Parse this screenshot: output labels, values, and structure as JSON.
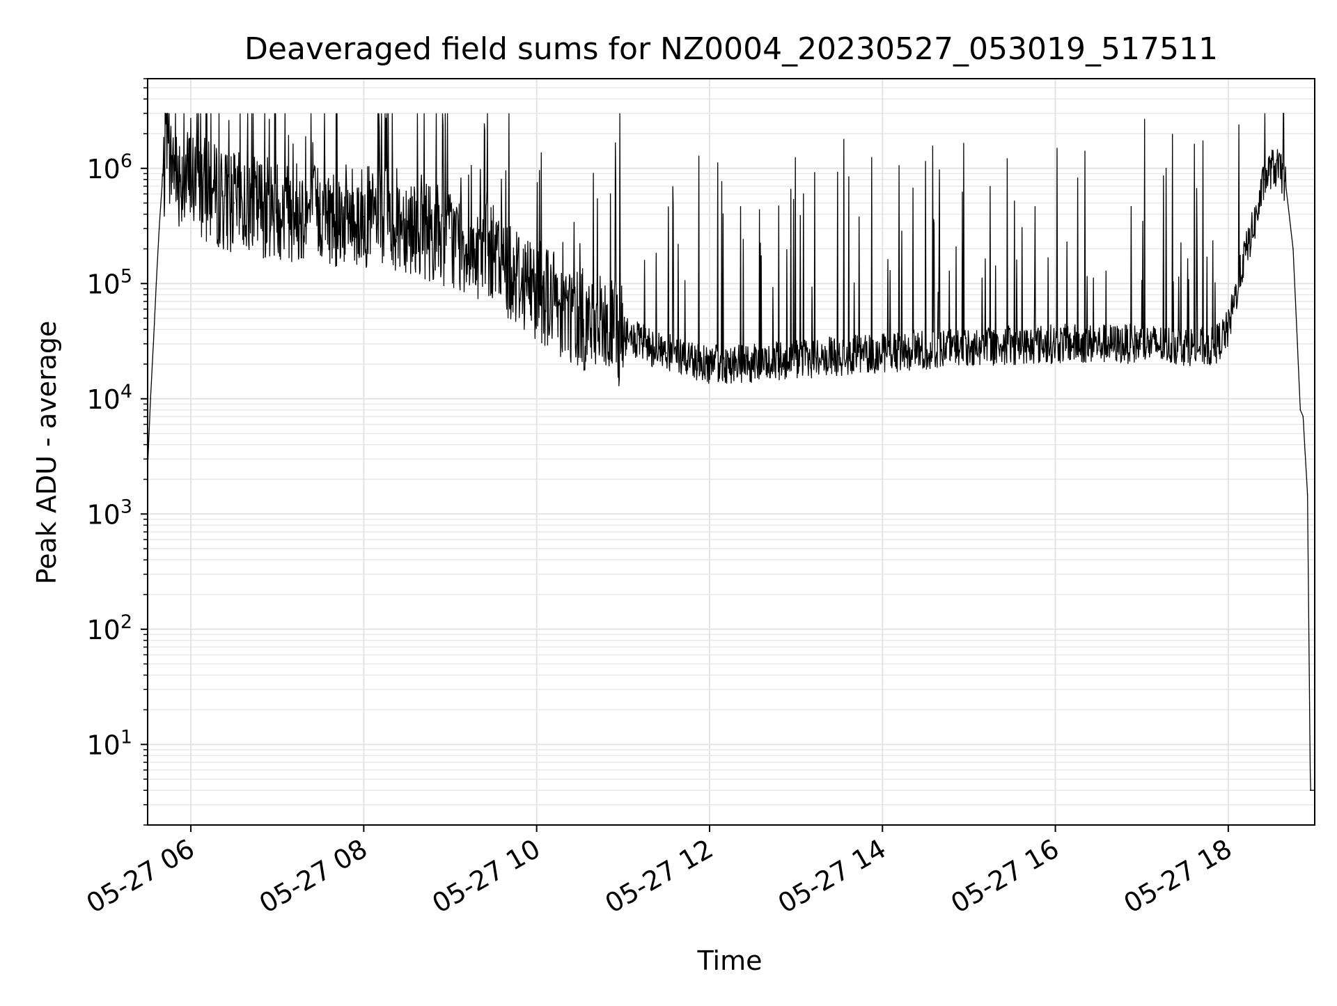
{
  "chart_data": {
    "type": "line",
    "title": "Deaveraged field sums for NZ0004_20230527_053019_517511",
    "xlabel": "Time",
    "ylabel": "Peak ADU - average",
    "yscale": "log",
    "ylim": [
      2,
      6000000
    ],
    "xlim": [
      "2023-05-27 05:30",
      "2023-05-27 19:00"
    ],
    "grid": true,
    "legend": "none",
    "line_color": "#000000",
    "x_ticks": [
      "05-27 06",
      "05-27 08",
      "05-27 10",
      "05-27 12",
      "05-27 14",
      "05-27 16",
      "05-27 18"
    ],
    "y_ticks": [
      {
        "base": "10",
        "exp": "1"
      },
      {
        "base": "10",
        "exp": "2"
      },
      {
        "base": "10",
        "exp": "3"
      },
      {
        "base": "10",
        "exp": "4"
      },
      {
        "base": "10",
        "exp": "5"
      },
      {
        "base": "10",
        "exp": "6"
      }
    ],
    "series": [
      {
        "x": [
          "2023-05-27 05:30",
          "2023-05-27 05:32",
          "2023-05-27 05:34",
          "2023-05-27 05:36",
          "2023-05-27 05:38",
          "2023-05-27 05:40",
          "2023-05-27 05:42",
          "2023-05-27 05:45",
          "2023-05-27 05:48",
          "2023-05-27 05:50",
          "2023-05-27 06:00",
          "2023-05-27 06:15",
          "2023-05-27 06:30",
          "2023-05-27 07:00",
          "2023-05-27 07:30",
          "2023-05-27 08:00",
          "2023-05-27 08:30",
          "2023-05-27 09:00",
          "2023-05-27 09:30",
          "2023-05-27 10:00",
          "2023-05-27 10:30",
          "2023-05-27 11:00",
          "2023-05-27 11:30",
          "2023-05-27 12:00",
          "2023-05-27 12:30",
          "2023-05-27 13:00",
          "2023-05-27 14:00",
          "2023-05-27 15:00",
          "2023-05-27 16:00",
          "2023-05-27 17:00",
          "2023-05-27 17:50",
          "2023-05-27 18:00",
          "2023-05-27 18:10",
          "2023-05-27 18:20",
          "2023-05-27 18:25",
          "2023-05-27 18:30",
          "2023-05-27 18:35",
          "2023-05-27 18:40",
          "2023-05-27 18:45",
          "2023-05-27 18:48",
          "2023-05-27 18:50",
          "2023-05-27 18:52",
          "2023-05-27 18:53",
          "2023-05-27 18:55",
          "2023-05-27 18:57",
          "2023-05-27 19:00"
        ],
        "y": [
          2500,
          10000,
          30000,
          100000,
          300000,
          700000,
          1000000,
          1000000,
          1200000,
          900000,
          800000,
          600000,
          500000,
          450000,
          400000,
          380000,
          350000,
          250000,
          170000,
          90000,
          50000,
          35000,
          25000,
          20000,
          20000,
          22000,
          25000,
          28000,
          30000,
          30000,
          28000,
          40000,
          150000,
          400000,
          800000,
          1000000,
          1000000,
          700000,
          200000,
          30000,
          8000,
          7000,
          4000,
          1500,
          4,
          4
        ]
      }
    ]
  }
}
